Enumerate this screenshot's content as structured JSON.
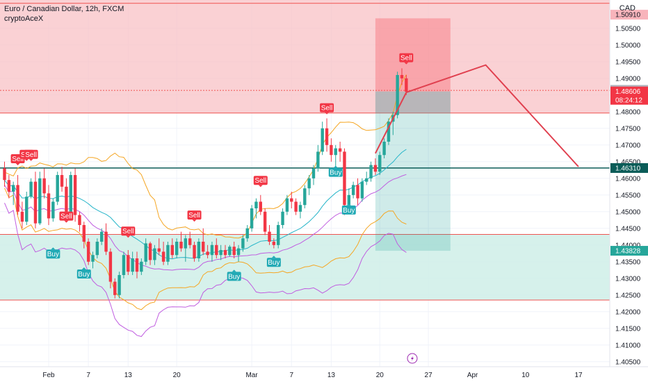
{
  "header": {
    "title": "Euro / Canadian Dollar, 12h, FXCM",
    "indicator": "cryptoAceX",
    "currency": "CAD"
  },
  "colors": {
    "up": "#26a69a",
    "down": "#f23645",
    "sell_zone": "#f8c2c6",
    "buy_zone": "#cfeee8",
    "bb_outer": "#f5a623",
    "bb_inner": "#26b5c9",
    "kc": "#c05de0",
    "projection": "#e0404f",
    "support": "#0b5c58"
  },
  "chart_data": {
    "type": "candlestick",
    "ylim": [
      1.4035,
      1.5135
    ],
    "y_ticks": [
      "1.50500",
      "1.50000",
      "1.49500",
      "1.49000",
      "1.48500",
      "1.48000",
      "1.47500",
      "1.47000",
      "1.46500",
      "1.46000",
      "1.45500",
      "1.45000",
      "1.44500",
      "1.44000",
      "1.43500",
      "1.43000",
      "1.42500",
      "1.42000",
      "1.41500",
      "1.41000",
      "1.40500"
    ],
    "x_ticks": [
      "Feb",
      "7",
      "13",
      "20",
      "Mar",
      "7",
      "13",
      "20",
      "27",
      "Apr",
      "10",
      "17"
    ],
    "candles": [
      {
        "o": 1.463,
        "h": 1.465,
        "l": 1.4575,
        "c": 1.4595
      },
      {
        "o": 1.4595,
        "h": 1.461,
        "l": 1.454,
        "c": 1.456
      },
      {
        "o": 1.456,
        "h": 1.459,
        "l": 1.452,
        "c": 1.458
      },
      {
        "o": 1.458,
        "h": 1.461,
        "l": 1.449,
        "c": 1.45
      },
      {
        "o": 1.45,
        "h": 1.453,
        "l": 1.445,
        "c": 1.447
      },
      {
        "o": 1.447,
        "h": 1.456,
        "l": 1.446,
        "c": 1.4545
      },
      {
        "o": 1.4545,
        "h": 1.46,
        "l": 1.454,
        "c": 1.459
      },
      {
        "o": 1.459,
        "h": 1.462,
        "l": 1.445,
        "c": 1.4465
      },
      {
        "o": 1.4465,
        "h": 1.462,
        "l": 1.446,
        "c": 1.46
      },
      {
        "o": 1.46,
        "h": 1.463,
        "l": 1.454,
        "c": 1.4555
      },
      {
        "o": 1.4555,
        "h": 1.458,
        "l": 1.446,
        "c": 1.448
      },
      {
        "o": 1.448,
        "h": 1.454,
        "l": 1.447,
        "c": 1.453
      },
      {
        "o": 1.453,
        "h": 1.462,
        "l": 1.452,
        "c": 1.461
      },
      {
        "o": 1.461,
        "h": 1.4635,
        "l": 1.456,
        "c": 1.4575
      },
      {
        "o": 1.4575,
        "h": 1.46,
        "l": 1.449,
        "c": 1.45
      },
      {
        "o": 1.45,
        "h": 1.462,
        "l": 1.449,
        "c": 1.461
      },
      {
        "o": 1.461,
        "h": 1.463,
        "l": 1.447,
        "c": 1.449
      },
      {
        "o": 1.449,
        "h": 1.45,
        "l": 1.444,
        "c": 1.446
      },
      {
        "o": 1.446,
        "h": 1.447,
        "l": 1.439,
        "c": 1.441
      },
      {
        "o": 1.441,
        "h": 1.442,
        "l": 1.434,
        "c": 1.435
      },
      {
        "o": 1.435,
        "h": 1.438,
        "l": 1.433,
        "c": 1.437
      },
      {
        "o": 1.437,
        "h": 1.442,
        "l": 1.436,
        "c": 1.441
      },
      {
        "o": 1.441,
        "h": 1.445,
        "l": 1.44,
        "c": 1.444
      },
      {
        "o": 1.444,
        "h": 1.4465,
        "l": 1.437,
        "c": 1.438
      },
      {
        "o": 1.438,
        "h": 1.439,
        "l": 1.427,
        "c": 1.429
      },
      {
        "o": 1.429,
        "h": 1.43,
        "l": 1.424,
        "c": 1.425
      },
      {
        "o": 1.425,
        "h": 1.432,
        "l": 1.424,
        "c": 1.431
      },
      {
        "o": 1.431,
        "h": 1.438,
        "l": 1.43,
        "c": 1.437
      },
      {
        "o": 1.437,
        "h": 1.4385,
        "l": 1.431,
        "c": 1.432
      },
      {
        "o": 1.432,
        "h": 1.438,
        "l": 1.431,
        "c": 1.436
      },
      {
        "o": 1.436,
        "h": 1.438,
        "l": 1.43,
        "c": 1.432
      },
      {
        "o": 1.432,
        "h": 1.436,
        "l": 1.431,
        "c": 1.435
      },
      {
        "o": 1.435,
        "h": 1.442,
        "l": 1.434,
        "c": 1.4405
      },
      {
        "o": 1.4405,
        "h": 1.441,
        "l": 1.434,
        "c": 1.4355
      },
      {
        "o": 1.4355,
        "h": 1.44,
        "l": 1.434,
        "c": 1.439
      },
      {
        "o": 1.439,
        "h": 1.442,
        "l": 1.437,
        "c": 1.438
      },
      {
        "o": 1.438,
        "h": 1.441,
        "l": 1.434,
        "c": 1.435
      },
      {
        "o": 1.435,
        "h": 1.441,
        "l": 1.434,
        "c": 1.44
      },
      {
        "o": 1.44,
        "h": 1.442,
        "l": 1.436,
        "c": 1.437
      },
      {
        "o": 1.437,
        "h": 1.442,
        "l": 1.436,
        "c": 1.441
      },
      {
        "o": 1.441,
        "h": 1.444,
        "l": 1.438,
        "c": 1.439
      },
      {
        "o": 1.439,
        "h": 1.443,
        "l": 1.435,
        "c": 1.442
      },
      {
        "o": 1.442,
        "h": 1.444,
        "l": 1.439,
        "c": 1.44
      },
      {
        "o": 1.44,
        "h": 1.441,
        "l": 1.435,
        "c": 1.436
      },
      {
        "o": 1.436,
        "h": 1.442,
        "l": 1.435,
        "c": 1.441
      },
      {
        "o": 1.441,
        "h": 1.445,
        "l": 1.437,
        "c": 1.438
      },
      {
        "o": 1.438,
        "h": 1.44,
        "l": 1.436,
        "c": 1.437
      },
      {
        "o": 1.437,
        "h": 1.441,
        "l": 1.435,
        "c": 1.44
      },
      {
        "o": 1.44,
        "h": 1.442,
        "l": 1.436,
        "c": 1.437
      },
      {
        "o": 1.437,
        "h": 1.44,
        "l": 1.4355,
        "c": 1.4385
      },
      {
        "o": 1.4385,
        "h": 1.44,
        "l": 1.436,
        "c": 1.437
      },
      {
        "o": 1.437,
        "h": 1.44,
        "l": 1.4365,
        "c": 1.4395
      },
      {
        "o": 1.4395,
        "h": 1.441,
        "l": 1.436,
        "c": 1.437
      },
      {
        "o": 1.437,
        "h": 1.44,
        "l": 1.435,
        "c": 1.439
      },
      {
        "o": 1.439,
        "h": 1.443,
        "l": 1.438,
        "c": 1.442
      },
      {
        "o": 1.442,
        "h": 1.446,
        "l": 1.441,
        "c": 1.445
      },
      {
        "o": 1.445,
        "h": 1.452,
        "l": 1.444,
        "c": 1.451
      },
      {
        "o": 1.451,
        "h": 1.454,
        "l": 1.448,
        "c": 1.453
      },
      {
        "o": 1.453,
        "h": 1.455,
        "l": 1.449,
        "c": 1.45
      },
      {
        "o": 1.45,
        "h": 1.451,
        "l": 1.443,
        "c": 1.444
      },
      {
        "o": 1.444,
        "h": 1.446,
        "l": 1.44,
        "c": 1.441
      },
      {
        "o": 1.441,
        "h": 1.442,
        "l": 1.439,
        "c": 1.44
      },
      {
        "o": 1.44,
        "h": 1.447,
        "l": 1.439,
        "c": 1.446
      },
      {
        "o": 1.446,
        "h": 1.451,
        "l": 1.445,
        "c": 1.45
      },
      {
        "o": 1.45,
        "h": 1.455,
        "l": 1.449,
        "c": 1.454
      },
      {
        "o": 1.454,
        "h": 1.456,
        "l": 1.451,
        "c": 1.453
      },
      {
        "o": 1.453,
        "h": 1.454,
        "l": 1.449,
        "c": 1.45
      },
      {
        "o": 1.45,
        "h": 1.453,
        "l": 1.448,
        "c": 1.452
      },
      {
        "o": 1.452,
        "h": 1.458,
        "l": 1.451,
        "c": 1.457
      },
      {
        "o": 1.457,
        "h": 1.461,
        "l": 1.455,
        "c": 1.46
      },
      {
        "o": 1.46,
        "h": 1.464,
        "l": 1.458,
        "c": 1.463
      },
      {
        "o": 1.463,
        "h": 1.47,
        "l": 1.462,
        "c": 1.468
      },
      {
        "o": 1.468,
        "h": 1.477,
        "l": 1.467,
        "c": 1.475
      },
      {
        "o": 1.475,
        "h": 1.478,
        "l": 1.468,
        "c": 1.47
      },
      {
        "o": 1.47,
        "h": 1.472,
        "l": 1.465,
        "c": 1.467
      },
      {
        "o": 1.467,
        "h": 1.47,
        "l": 1.462,
        "c": 1.469
      },
      {
        "o": 1.469,
        "h": 1.471,
        "l": 1.465,
        "c": 1.468
      },
      {
        "o": 1.468,
        "h": 1.469,
        "l": 1.449,
        "c": 1.452
      },
      {
        "o": 1.452,
        "h": 1.457,
        "l": 1.45,
        "c": 1.455
      },
      {
        "o": 1.455,
        "h": 1.459,
        "l": 1.454,
        "c": 1.458
      },
      {
        "o": 1.458,
        "h": 1.46,
        "l": 1.452,
        "c": 1.454
      },
      {
        "o": 1.454,
        "h": 1.46,
        "l": 1.453,
        "c": 1.459
      },
      {
        "o": 1.459,
        "h": 1.462,
        "l": 1.458,
        "c": 1.46
      },
      {
        "o": 1.46,
        "h": 1.465,
        "l": 1.459,
        "c": 1.464
      },
      {
        "o": 1.464,
        "h": 1.466,
        "l": 1.461,
        "c": 1.462
      },
      {
        "o": 1.462,
        "h": 1.468,
        "l": 1.461,
        "c": 1.467
      },
      {
        "o": 1.467,
        "h": 1.472,
        "l": 1.466,
        "c": 1.471
      },
      {
        "o": 1.471,
        "h": 1.478,
        "l": 1.47,
        "c": 1.477
      },
      {
        "o": 1.477,
        "h": 1.48,
        "l": 1.473,
        "c": 1.479
      },
      {
        "o": 1.479,
        "h": 1.492,
        "l": 1.478,
        "c": 1.491
      },
      {
        "o": 1.491,
        "h": 1.493,
        "l": 1.488,
        "c": 1.49
      },
      {
        "o": 1.49,
        "h": 1.491,
        "l": 1.485,
        "c": 1.486
      }
    ],
    "signals": [
      {
        "text": "Sell",
        "i": 3,
        "price": 1.4637,
        "type": "sell"
      },
      {
        "text": "Sell",
        "i": 5,
        "price": 1.465,
        "type": "sell"
      },
      {
        "text": "Sell",
        "i": 6,
        "price": 1.465,
        "type": "sell"
      },
      {
        "text": "Buy",
        "i": 11,
        "price": 1.4395,
        "type": "buy"
      },
      {
        "text": "Sell",
        "i": 14,
        "price": 1.4465,
        "type": "sell"
      },
      {
        "text": "Buy",
        "i": 18,
        "price": 1.4335,
        "type": "buy"
      },
      {
        "text": "Sell",
        "i": 28,
        "price": 1.442,
        "type": "sell"
      },
      {
        "text": "Sell",
        "i": 43,
        "price": 1.4468,
        "type": "sell"
      },
      {
        "text": "Buy",
        "i": 52,
        "price": 1.4328,
        "type": "buy"
      },
      {
        "text": "Sell",
        "i": 58,
        "price": 1.4572,
        "type": "sell"
      },
      {
        "text": "Buy",
        "i": 61,
        "price": 1.437,
        "type": "buy"
      },
      {
        "text": "Sell",
        "i": 73,
        "price": 1.479,
        "type": "sell"
      },
      {
        "text": "Buy",
        "i": 75,
        "price": 1.464,
        "type": "buy"
      },
      {
        "text": "Buy",
        "i": 78,
        "price": 1.4527,
        "type": "buy"
      },
      {
        "text": "Sell",
        "i": 91,
        "price": 1.494,
        "type": "sell"
      }
    ],
    "zones": {
      "sell": {
        "top": 1.5135,
        "bottom": 1.4796
      },
      "buy": {
        "top": 1.4432,
        "bottom": 1.4235
      },
      "supply_line": 1.4864,
      "support": 1.4631
    },
    "position": {
      "start_i": 84,
      "end_i": 101,
      "entry": 1.48606,
      "stop": 1.508,
      "target": 1.43828
    },
    "projection": [
      {
        "i": 84,
        "p": 1.4675
      },
      {
        "i": 91,
        "p": 1.4858
      },
      {
        "i": 109,
        "p": 1.494
      },
      {
        "i": 130,
        "p": 1.4635
      }
    ],
    "price_labels": [
      {
        "value": "1.50910",
        "price": 1.5091,
        "bg": "#f8b4bb",
        "fg": "#131722"
      },
      {
        "value": "1.48655",
        "price": 1.48655,
        "bg": "#b2b5be",
        "fg": "#131722"
      },
      {
        "value": "1.48606",
        "price": 1.48606,
        "bg": "#f23645",
        "fg": "#ffffff",
        "sub": "08:24:12"
      },
      {
        "value": "1.46310",
        "price": 1.4631,
        "bg": "#0b5c58",
        "fg": "#ffffff"
      },
      {
        "value": "1.43828",
        "price": 1.43828,
        "bg": "#26a69a",
        "fg": "#ffffff"
      }
    ]
  }
}
